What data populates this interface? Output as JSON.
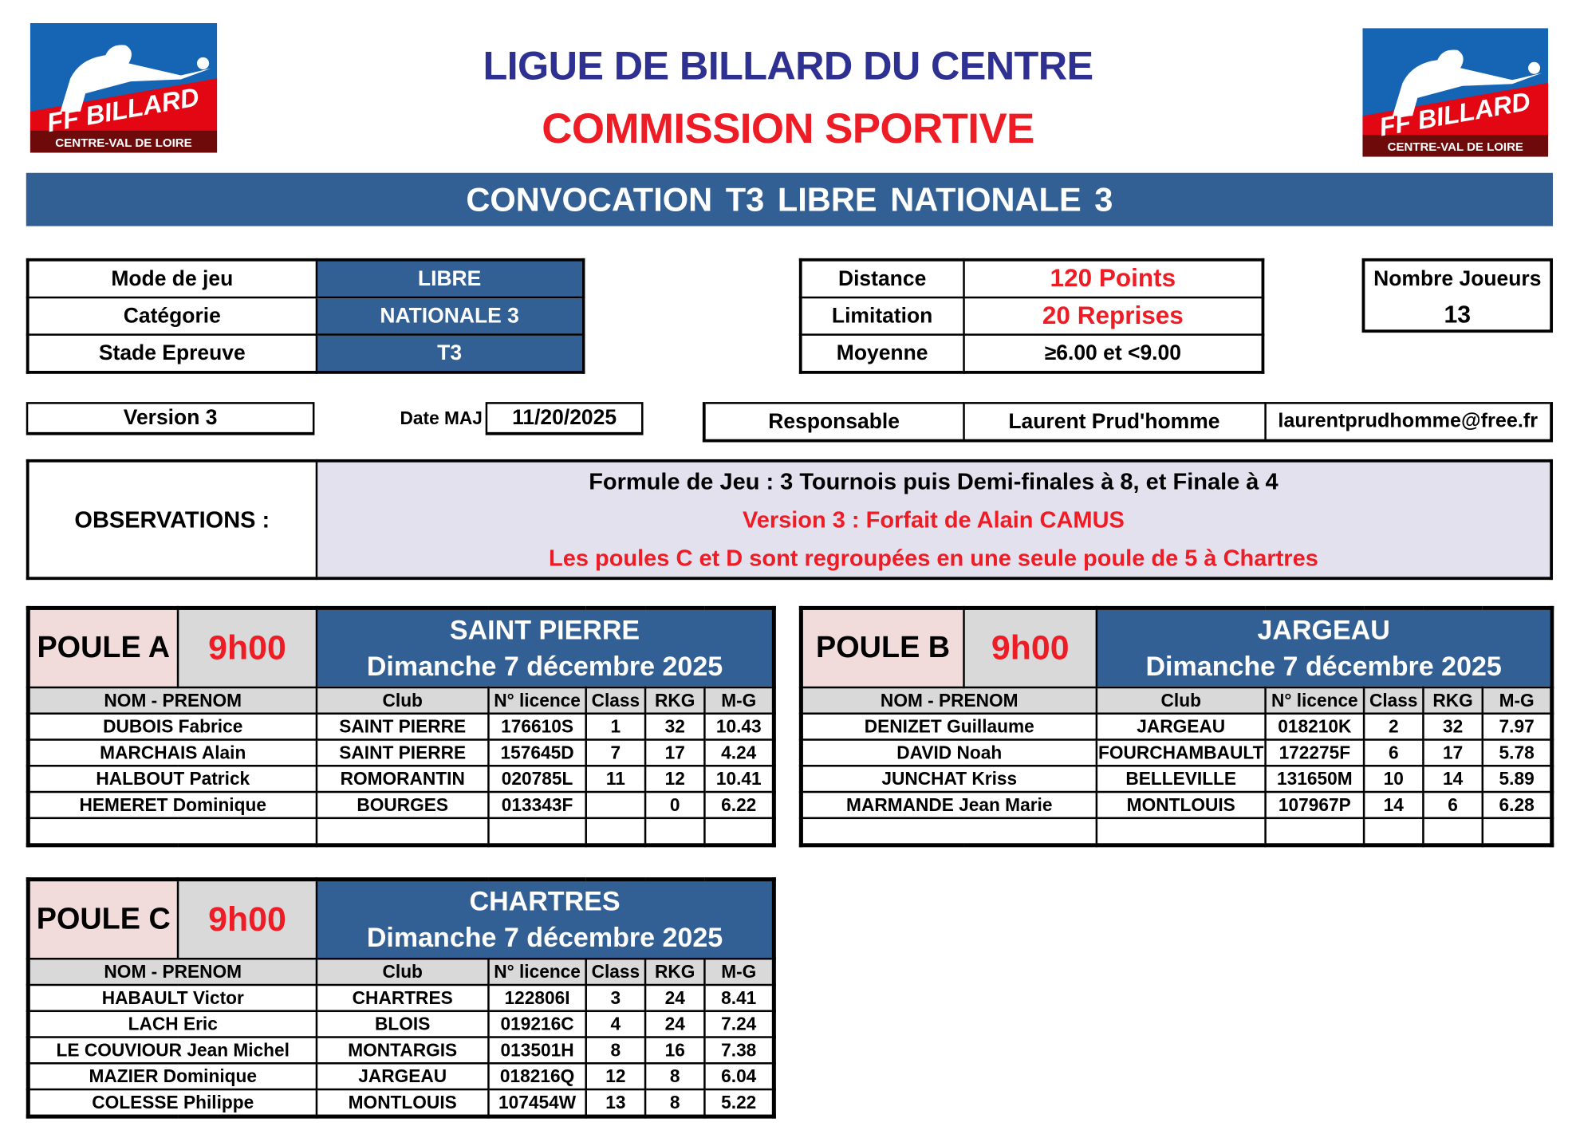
{
  "logo": {
    "main_text": "FF BILLARD",
    "sub_text": "CENTRE-VAL DE LOIRE",
    "colors": {
      "blue": "#1565b4",
      "red": "#e30613",
      "dark_red": "#6e0a0a"
    }
  },
  "header": {
    "title": "LIGUE DE BILLARD DU CENTRE",
    "subtitle": "COMMISSION SPORTIVE"
  },
  "banner": {
    "text": "CONVOCATION  T3  LIBRE  NATIONALE 3"
  },
  "game_info": {
    "rows": [
      {
        "label": "Mode de jeu",
        "value": "LIBRE"
      },
      {
        "label": "Catégorie",
        "value": "NATIONALE 3"
      },
      {
        "label": "Stade Epreuve",
        "value": "T3"
      }
    ]
  },
  "distance_info": {
    "rows": [
      {
        "label": "Distance",
        "value": "120 Points"
      },
      {
        "label": "Limitation",
        "value": "20 Reprises"
      },
      {
        "label": "Moyenne",
        "value": "≥6.00 et <9.00"
      }
    ]
  },
  "players_count": {
    "label": "Nombre Joueurs",
    "value": "13"
  },
  "version": {
    "label": "Version 3",
    "date_label": "Date MAJ",
    "date": "11/20/2025"
  },
  "responsible": {
    "label": "Responsable",
    "name": "Laurent Prud'homme",
    "email": "laurentprudhomme@free.fr"
  },
  "observations": {
    "label": "OBSERVATIONS :",
    "lines": [
      "Formule de Jeu : 3 Tournois puis Demi-finales à 8, et Finale à 4",
      "Version 3 : Forfait de Alain CAMUS",
      "Les poules C et D sont regroupées en une seule poule de 5 à Chartres"
    ]
  },
  "columns": [
    "NOM - PRENOM",
    "Club",
    "N° licence",
    "Class",
    "RKG",
    "M-G"
  ],
  "pools": [
    {
      "name": "POULE A",
      "time": "9h00",
      "venue": "SAINT PIERRE",
      "date": "Dimanche 7 décembre 2025",
      "players": [
        [
          "DUBOIS Fabrice",
          "SAINT PIERRE",
          "176610S",
          "1",
          "32",
          "10.43"
        ],
        [
          "MARCHAIS Alain",
          "SAINT PIERRE",
          "157645D",
          "7",
          "17",
          "4.24"
        ],
        [
          "HALBOUT Patrick",
          "ROMORANTIN",
          "020785L",
          "11",
          "12",
          "10.41"
        ],
        [
          "HEMERET Dominique",
          "BOURGES",
          "013343F",
          "",
          "0",
          "6.22"
        ],
        [
          "",
          "",
          "",
          "",
          "",
          ""
        ]
      ]
    },
    {
      "name": "POULE B",
      "time": "9h00",
      "venue": "JARGEAU",
      "date": "Dimanche 7 décembre 2025",
      "players": [
        [
          "DENIZET Guillaume",
          "JARGEAU",
          "018210K",
          "2",
          "32",
          "7.97"
        ],
        [
          "DAVID Noah",
          "FOURCHAMBAULT",
          "172275F",
          "6",
          "17",
          "5.78"
        ],
        [
          "JUNCHAT Kriss",
          "BELLEVILLE",
          "131650M",
          "10",
          "14",
          "5.89"
        ],
        [
          "MARMANDE Jean Marie",
          "MONTLOUIS",
          "107967P",
          "14",
          "6",
          "6.28"
        ],
        [
          "",
          "",
          "",
          "",
          "",
          ""
        ]
      ]
    },
    {
      "name": "POULE C",
      "time": "9h00",
      "venue": "CHARTRES",
      "date": "Dimanche 7 décembre 2025",
      "players": [
        [
          "HABAULT Victor",
          "CHARTRES",
          "122806I",
          "3",
          "24",
          "8.41"
        ],
        [
          "LACH Eric",
          "BLOIS",
          "019216C",
          "4",
          "24",
          "7.24"
        ],
        [
          "LE COUVIOUR Jean Michel",
          "MONTARGIS",
          "013501H",
          "8",
          "16",
          "7.38"
        ],
        [
          "MAZIER Dominique",
          "JARGEAU",
          "018216Q",
          "12",
          "8",
          "6.04"
        ],
        [
          "COLESSE Philippe",
          "MONTLOUIS",
          "107454W",
          "13",
          "8",
          "5.22"
        ]
      ]
    }
  ]
}
